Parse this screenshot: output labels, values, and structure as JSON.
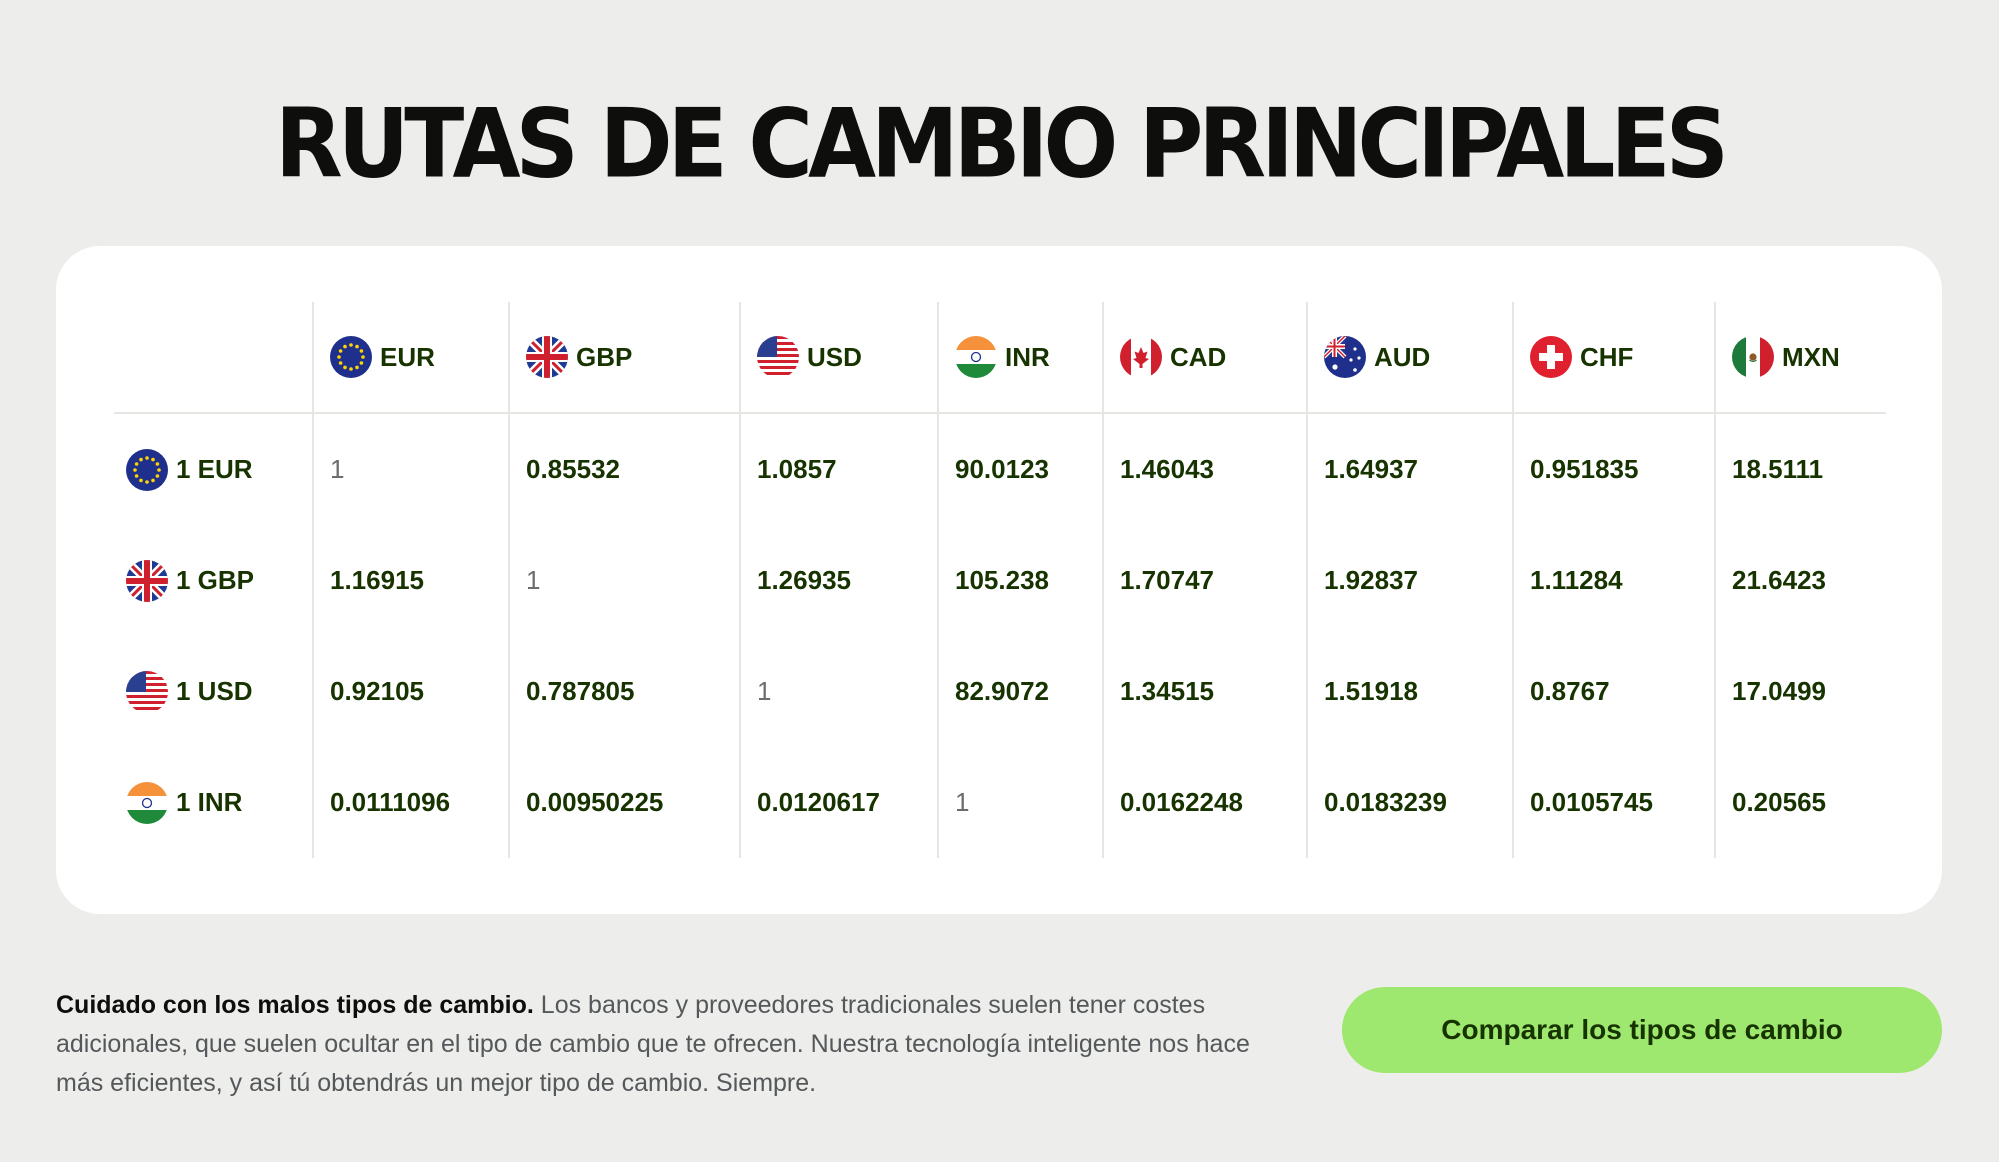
{
  "page": {
    "title": "RUTAS DE CAMBIO PRINCIPALES"
  },
  "table": {
    "columns": [
      {
        "code": "EUR",
        "flag": "eu-flag-icon"
      },
      {
        "code": "GBP",
        "flag": "uk-flag-icon"
      },
      {
        "code": "USD",
        "flag": "us-flag-icon"
      },
      {
        "code": "INR",
        "flag": "india-flag-icon"
      },
      {
        "code": "CAD",
        "flag": "canada-flag-icon"
      },
      {
        "code": "AUD",
        "flag": "australia-flag-icon"
      },
      {
        "code": "CHF",
        "flag": "switzerland-flag-icon"
      },
      {
        "code": "MXN",
        "flag": "mexico-flag-icon"
      }
    ],
    "rows": [
      {
        "label": "1 EUR",
        "flag": "eu-flag-icon",
        "values": [
          "1",
          "0.85532",
          "1.0857",
          "90.0123",
          "1.46043",
          "1.64937",
          "0.951835",
          "18.5111"
        ]
      },
      {
        "label": "1 GBP",
        "flag": "uk-flag-icon",
        "values": [
          "1.16915",
          "1",
          "1.26935",
          "105.238",
          "1.70747",
          "1.92837",
          "1.11284",
          "21.6423"
        ]
      },
      {
        "label": "1 USD",
        "flag": "us-flag-icon",
        "values": [
          "0.92105",
          "0.787805",
          "1",
          "82.9072",
          "1.34515",
          "1.51918",
          "0.8767",
          "17.0499"
        ]
      },
      {
        "label": "1 INR",
        "flag": "india-flag-icon",
        "values": [
          "0.0111096",
          "0.00950225",
          "0.0120617",
          "1",
          "0.0162248",
          "0.0183239",
          "0.0105745",
          "0.20565"
        ]
      }
    ]
  },
  "footer": {
    "note_bold": "Cuidado con los malos tipos de cambio.",
    "note_text": " Los bancos y proveedores tradicionales suelen tener costes adicionales, que suelen ocultar en el tipo de cambio que te ofrecen. Nuestra tecnología inteligente nos hace más eficientes, y así tú obtendrás un mejor tipo de cambio. Siempre.",
    "cta_label": "Comparar los tipos de cambio"
  },
  "colors": {
    "background": "#edeeeb",
    "card": "#ffffff",
    "accent": "#9fe870",
    "text": "#163300"
  }
}
